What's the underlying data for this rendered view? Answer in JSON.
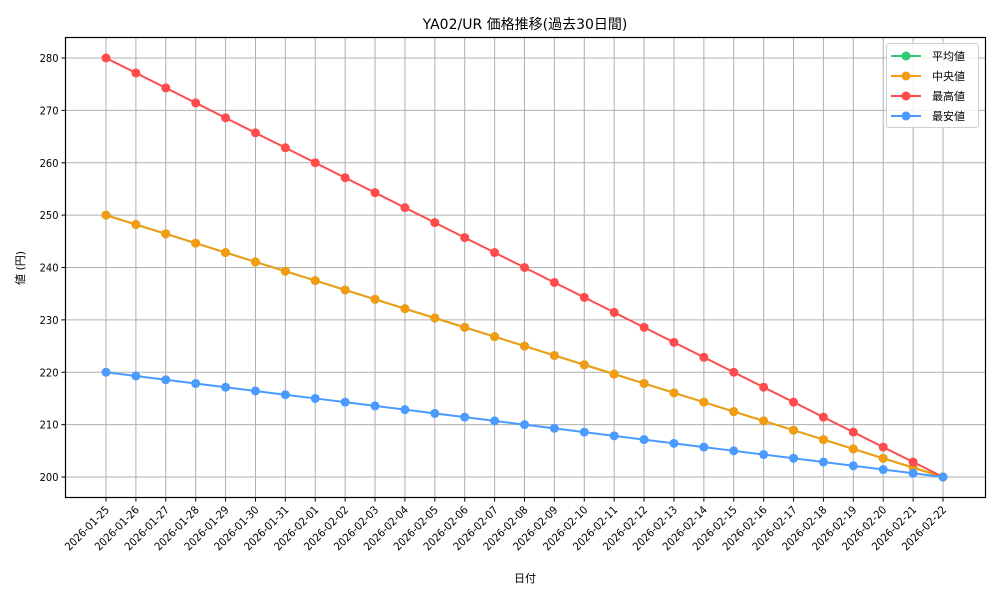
{
  "chart_data": {
    "type": "line",
    "title": "YA02/UR 価格推移(過去30日間)",
    "xlabel": "日付",
    "ylabel": "値 (円)",
    "ylim": [
      196,
      284
    ],
    "yticks": [
      200,
      210,
      220,
      230,
      240,
      250,
      260,
      270,
      280
    ],
    "grid": true,
    "legend_position": "upper right",
    "x": [
      "2026-01-25",
      "2026-01-26",
      "2026-01-27",
      "2026-01-28",
      "2026-01-29",
      "2026-01-30",
      "2026-01-31",
      "2026-02-01",
      "2026-02-02",
      "2026-02-03",
      "2026-02-04",
      "2026-02-05",
      "2026-02-06",
      "2026-02-07",
      "2026-02-08",
      "2026-02-09",
      "2026-02-10",
      "2026-02-11",
      "2026-02-12",
      "2026-02-13",
      "2026-02-14",
      "2026-02-15",
      "2026-02-16",
      "2026-02-17",
      "2026-02-18",
      "2026-02-19",
      "2026-02-20",
      "2026-02-21",
      "2026-02-22"
    ],
    "series": [
      {
        "name": "平均値",
        "color": "#2ecc71",
        "values": [
          250,
          248.21,
          246.43,
          244.64,
          242.86,
          241.07,
          239.29,
          237.5,
          235.71,
          233.93,
          232.14,
          230.36,
          228.57,
          226.79,
          225,
          223.21,
          221.43,
          219.64,
          217.86,
          216.07,
          214.29,
          212.5,
          210.71,
          208.93,
          207.14,
          205.36,
          203.57,
          201.79,
          200
        ]
      },
      {
        "name": "中央値",
        "color": "#f39c12",
        "values": [
          250,
          248.21,
          246.43,
          244.64,
          242.86,
          241.07,
          239.29,
          237.5,
          235.71,
          233.93,
          232.14,
          230.36,
          228.57,
          226.79,
          225,
          223.21,
          221.43,
          219.64,
          217.86,
          216.07,
          214.29,
          212.5,
          210.71,
          208.93,
          207.14,
          205.36,
          203.57,
          201.79,
          200
        ]
      },
      {
        "name": "最高値",
        "color": "#ff4b4b",
        "values": [
          280,
          277.14,
          274.29,
          271.43,
          268.57,
          265.71,
          262.86,
          260,
          257.14,
          254.29,
          251.43,
          248.57,
          245.71,
          242.86,
          240,
          237.14,
          234.29,
          231.43,
          228.57,
          225.71,
          222.86,
          220,
          217.14,
          214.29,
          211.43,
          208.57,
          205.71,
          202.86,
          200
        ]
      },
      {
        "name": "最安値",
        "color": "#4b9bff",
        "values": [
          220,
          219.29,
          218.57,
          217.86,
          217.14,
          216.43,
          215.71,
          215,
          214.29,
          213.57,
          212.86,
          212.14,
          211.43,
          210.71,
          210,
          209.29,
          208.57,
          207.86,
          207.14,
          206.43,
          205.71,
          205,
          204.29,
          203.57,
          202.86,
          202.14,
          201.43,
          200.71,
          200
        ]
      }
    ]
  }
}
